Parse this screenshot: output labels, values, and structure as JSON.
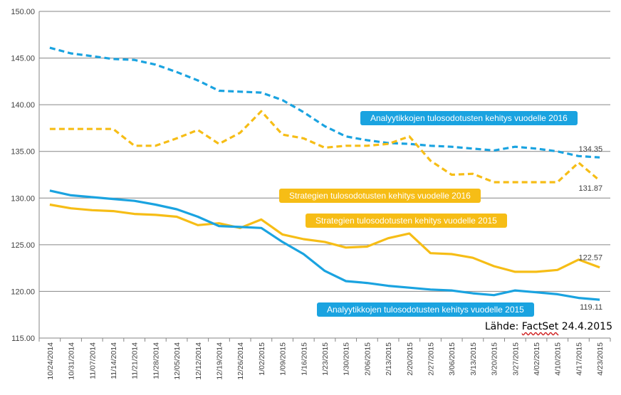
{
  "chart_data": {
    "type": "line",
    "title": "",
    "xlabel": "",
    "ylabel": "",
    "ylim": [
      115,
      150
    ],
    "yticks": [
      115,
      120,
      125,
      130,
      135,
      140,
      145,
      150
    ],
    "categories": [
      "10/24/2014",
      "10/31/2014",
      "11/07/2014",
      "11/14/2014",
      "11/21/2014",
      "11/28/2014",
      "12/05/2014",
      "12/12/2014",
      "12/19/2014",
      "12/26/2014",
      "1/02/2015",
      "1/09/2015",
      "1/16/2015",
      "1/23/2015",
      "1/30/2015",
      "2/06/2015",
      "2/13/2015",
      "2/20/2015",
      "2/27/2015",
      "3/06/2015",
      "3/13/2015",
      "3/20/2015",
      "3/27/2015",
      "4/02/2015",
      "4/10/2015",
      "4/17/2015",
      "4/23/2015"
    ],
    "series": [
      {
        "name": "Analyytikkojen tulosodotusten kehitys vuodelle 2016",
        "color": "#1aa3e0",
        "dashed": true,
        "values": [
          146.1,
          145.5,
          145.2,
          144.9,
          144.8,
          144.3,
          143.5,
          142.6,
          141.5,
          141.4,
          141.3,
          140.5,
          139.2,
          137.7,
          136.6,
          136.2,
          135.9,
          135.8,
          135.6,
          135.5,
          135.3,
          135.1,
          135.5,
          135.3,
          135.0,
          134.5,
          134.35
        ],
        "end_label": "134.35"
      },
      {
        "name": "Strategien tulosodotusten kehitys vuodelle 2016",
        "color": "#f6bd16",
        "dashed": true,
        "values": [
          137.4,
          137.4,
          137.4,
          137.4,
          135.6,
          135.6,
          136.4,
          137.3,
          135.8,
          137.0,
          139.3,
          136.8,
          136.4,
          135.4,
          135.6,
          135.6,
          135.8,
          136.6,
          134.0,
          132.5,
          132.6,
          131.7,
          131.7,
          131.7,
          131.7,
          133.8,
          131.87
        ],
        "end_label": "131.87"
      },
      {
        "name": "Strategien tulosodotusten kehitys vuodelle 2015",
        "color": "#f6bd16",
        "dashed": false,
        "values": [
          129.3,
          128.9,
          128.7,
          128.6,
          128.3,
          128.2,
          128.0,
          127.1,
          127.3,
          126.8,
          127.7,
          126.1,
          125.6,
          125.3,
          124.7,
          124.8,
          125.7,
          126.2,
          124.1,
          124.0,
          123.6,
          122.7,
          122.1,
          122.1,
          122.3,
          123.4,
          122.57
        ],
        "end_label": "122.57"
      },
      {
        "name": "Analyytikkojen tulosodotusten kehitys vuodelle 2015",
        "color": "#1aa3e0",
        "dashed": false,
        "values": [
          130.8,
          130.3,
          130.1,
          129.9,
          129.7,
          129.3,
          128.8,
          128.0,
          127.0,
          126.9,
          126.8,
          125.3,
          124.0,
          122.2,
          121.1,
          120.9,
          120.6,
          120.4,
          120.2,
          120.1,
          119.8,
          119.6,
          120.1,
          119.9,
          119.7,
          119.3,
          119.11
        ],
        "end_label": "119.11"
      }
    ],
    "legend": [
      "Analyytikkojen tulosodotusten kehitys vuodelle 2016",
      "Strategien tulosodotusten kehitys vuodelle 2016",
      "Strategien tulosodotusten kehitys vuodelle 2015",
      "Analyytikkojen tulosodotusten kehitys vuodelle 2015"
    ],
    "source_prefix": "Lähde: ",
    "source_brand": "FactSet",
    "source_date": " 24.4.2015"
  }
}
